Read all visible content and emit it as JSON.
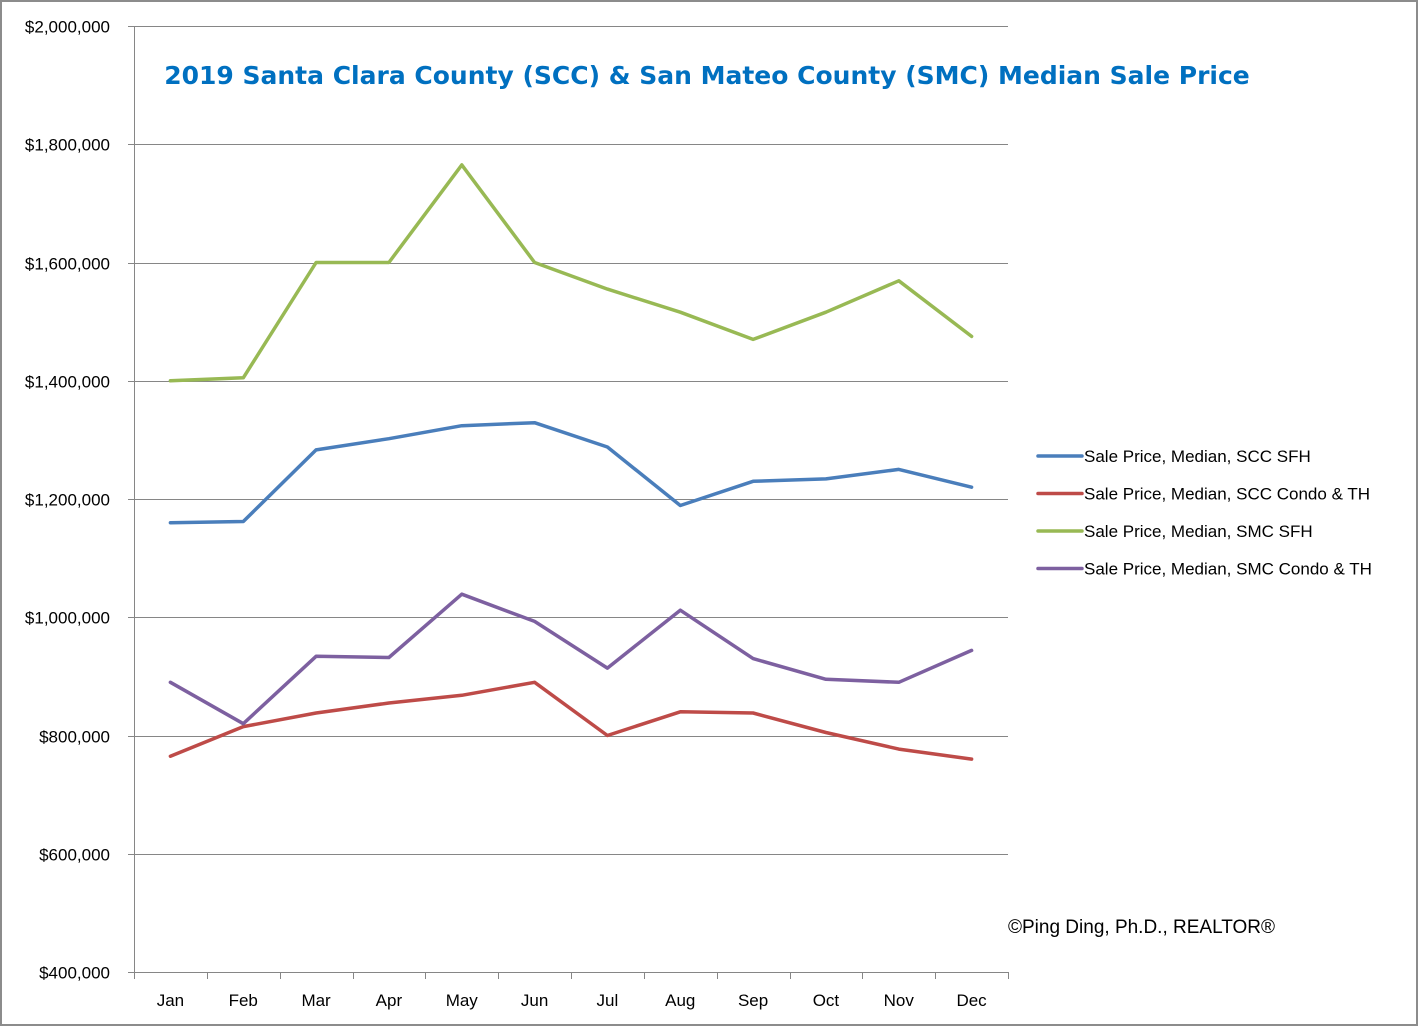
{
  "chart_data": {
    "type": "line",
    "title": "2019 Santa Clara County (SCC) & San Mateo County (SMC) Median Sale Price",
    "xlabel": "",
    "ylabel": "",
    "categories": [
      "Jan",
      "Feb",
      "Mar",
      "Apr",
      "May",
      "Jun",
      "Jul",
      "Aug",
      "Sep",
      "Oct",
      "Nov",
      "Dec"
    ],
    "ylim": [
      400000,
      2000000
    ],
    "yticks": [
      400000,
      600000,
      800000,
      1000000,
      1200000,
      1400000,
      1600000,
      1800000,
      2000000
    ],
    "ytick_labels": [
      "$400,000",
      "$600,000",
      "$800,000",
      "$1,000,000",
      "$1,200,000",
      "$1,400,000",
      "$1,600,000",
      "$1,800,000",
      "$2,000,000"
    ],
    "grid": "horizontal",
    "legend_position": "right",
    "series": [
      {
        "name": "Sale Price, Median, SCC SFH",
        "color": "#4a7ebb",
        "values": [
          1160000,
          1162000,
          1283000,
          1302000,
          1324000,
          1329000,
          1288000,
          1189000,
          1230000,
          1234000,
          1250000,
          1220000
        ]
      },
      {
        "name": "Sale Price, Median, SCC Condo & TH",
        "color": "#be4b48",
        "values": [
          765000,
          815000,
          838000,
          855000,
          868000,
          890000,
          800000,
          840000,
          838000,
          805000,
          777000,
          760000
        ]
      },
      {
        "name": "Sale Price, Median, SMC SFH",
        "color": "#98b954",
        "values": [
          1400000,
          1405000,
          1600000,
          1600000,
          1765000,
          1600000,
          1555000,
          1516000,
          1470000,
          1516000,
          1569000,
          1475000
        ]
      },
      {
        "name": "Sale Price, Median, SMC Condo & TH",
        "color": "#7d60a0",
        "values": [
          890000,
          820000,
          934000,
          932000,
          1039000,
          993000,
          914000,
          1012000,
          930000,
          895000,
          890000,
          944000
        ]
      }
    ],
    "annotation": "©Ping Ding, Ph.D., REALTOR®"
  },
  "colors": {
    "title": "#0070c0",
    "gridline": "#868686",
    "axis": "#868686",
    "frame_border": "#8c8c8c"
  }
}
